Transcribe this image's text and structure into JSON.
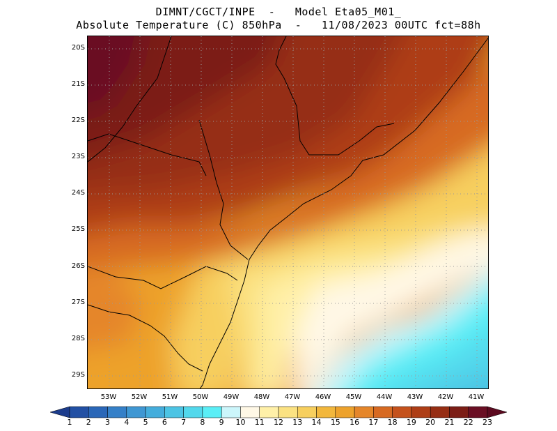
{
  "title_line1": "DIMNT/CGCT/INPE  -   Model Eta05_M01_",
  "title_line2": "Absolute Temperature (C) 850hPa  -   11/08/2023 00UTC fct=88h",
  "lat_labels": [
    "20S",
    "21S",
    "22S",
    "23S",
    "24S",
    "25S",
    "26S",
    "27S",
    "28S",
    "29S"
  ],
  "lon_labels": [
    "53W",
    "52W",
    "51W",
    "50W",
    "49W",
    "48W",
    "47W",
    "46W",
    "45W",
    "44W",
    "43W",
    "42W",
    "41W"
  ],
  "colorbar": {
    "labels": [
      "1",
      "2",
      "3",
      "4",
      "5",
      "6",
      "7",
      "8",
      "9",
      "10",
      "11",
      "12",
      "13",
      "14",
      "15",
      "16",
      "17",
      "18",
      "19",
      "20",
      "21",
      "22",
      "23"
    ],
    "colors": [
      "#1c3c8c",
      "#2250a4",
      "#2a67b8",
      "#3580c8",
      "#3f97d3",
      "#44addc",
      "#4cc4e4",
      "#52d8ec",
      "#5aeef6",
      "#ccf6fb",
      "#fff8e6",
      "#fff0a8",
      "#fbe282",
      "#f7cf5e",
      "#f2b73c",
      "#eda22c",
      "#e5862a",
      "#d76a22",
      "#c5521c",
      "#ae3e16",
      "#962e14",
      "#7c1e16",
      "#6a0f24"
    ],
    "under_color": "#1c3c8c",
    "over_color": "#5c0a20"
  }
}
